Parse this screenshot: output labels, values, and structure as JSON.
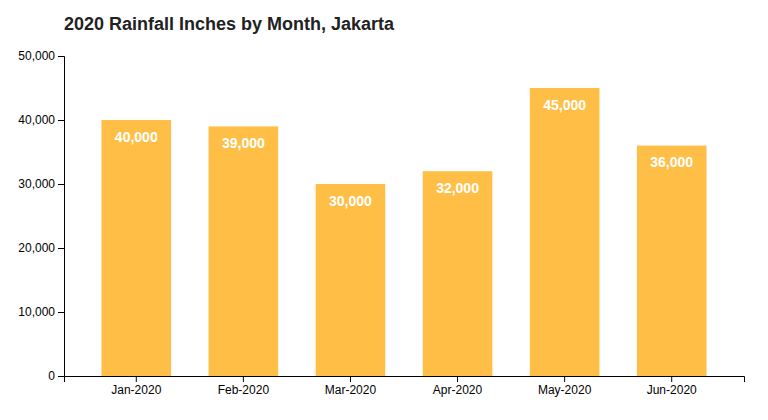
{
  "chart_data": {
    "type": "bar",
    "title": "2020 Rainfall Inches by Month, Jakarta",
    "categories": [
      "Jan-2020",
      "Feb-2020",
      "Mar-2020",
      "Apr-2020",
      "May-2020",
      "Jun-2020"
    ],
    "values": [
      40000,
      39000,
      30000,
      32000,
      45000,
      36000
    ],
    "value_labels": [
      "40,000",
      "39,000",
      "30,000",
      "32,000",
      "45,000",
      "36,000"
    ],
    "data_labels": true,
    "color": "#FFBF47",
    "ylim": [
      0,
      50000
    ],
    "yticks": [
      0,
      {
        "value": 10000,
        "label": "10,000"
      },
      {
        "value": 20000,
        "label": "20,000"
      },
      {
        "value": 30000,
        "label": "30,000"
      },
      {
        "value": 40000,
        "label": "40,000"
      },
      {
        "value": 50000,
        "label": "50,000"
      }
    ],
    "grid": false
  }
}
